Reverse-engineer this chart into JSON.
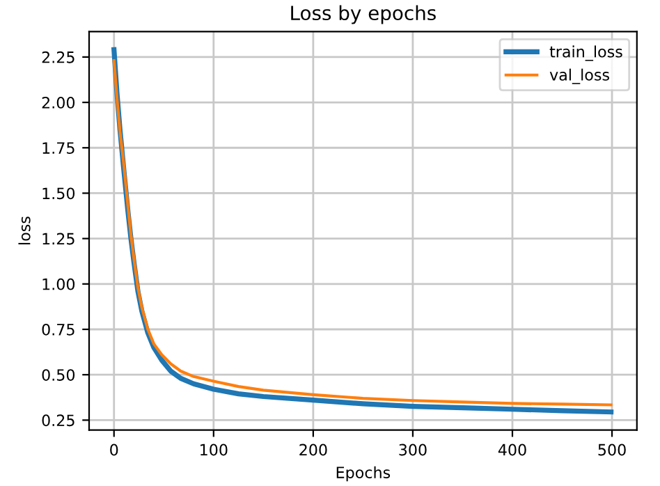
{
  "chart_data": {
    "type": "line",
    "title": "Loss by epochs",
    "xlabel": "Epochs",
    "ylabel": "loss",
    "x": [
      0,
      3,
      6,
      10,
      14,
      17,
      20,
      24,
      28,
      34,
      40,
      48,
      57,
      67,
      80,
      100,
      125,
      150,
      200,
      250,
      300,
      350,
      400,
      450,
      499
    ],
    "series": [
      {
        "name": "train_loss",
        "color": "#1f77b4",
        "values": [
          2.29,
          2.05,
          1.85,
          1.62,
          1.4,
          1.25,
          1.12,
          0.96,
          0.85,
          0.73,
          0.65,
          0.58,
          0.52,
          0.48,
          0.45,
          0.42,
          0.395,
          0.38,
          0.36,
          0.34,
          0.326,
          0.318,
          0.31,
          0.302,
          0.295
        ]
      },
      {
        "name": "val_loss",
        "color": "#ff7f0e",
        "values": [
          2.23,
          2.02,
          1.84,
          1.65,
          1.43,
          1.27,
          1.14,
          0.98,
          0.87,
          0.75,
          0.67,
          0.61,
          0.56,
          0.52,
          0.49,
          0.464,
          0.435,
          0.415,
          0.39,
          0.37,
          0.358,
          0.35,
          0.342,
          0.338,
          0.334
        ]
      }
    ],
    "xlim": [
      -25,
      525
    ],
    "ylim": [
      0.195,
      2.39
    ],
    "xticks": [
      0,
      100,
      200,
      300,
      400,
      500
    ],
    "yticks": [
      {
        "value": 0.25,
        "label": "0.25"
      },
      {
        "value": 0.5,
        "label": "0.50"
      },
      {
        "value": 0.75,
        "label": "0.75"
      },
      {
        "value": 1.0,
        "label": "1.00"
      },
      {
        "value": 1.25,
        "label": "1.25"
      },
      {
        "value": 1.5,
        "label": "1.50"
      },
      {
        "value": 1.75,
        "label": "1.75"
      },
      {
        "value": 2.0,
        "label": "2.00"
      },
      {
        "value": 2.25,
        "label": "2.25"
      }
    ],
    "grid": true,
    "legend": "top right",
    "marker": "none",
    "line_style": "solid"
  }
}
